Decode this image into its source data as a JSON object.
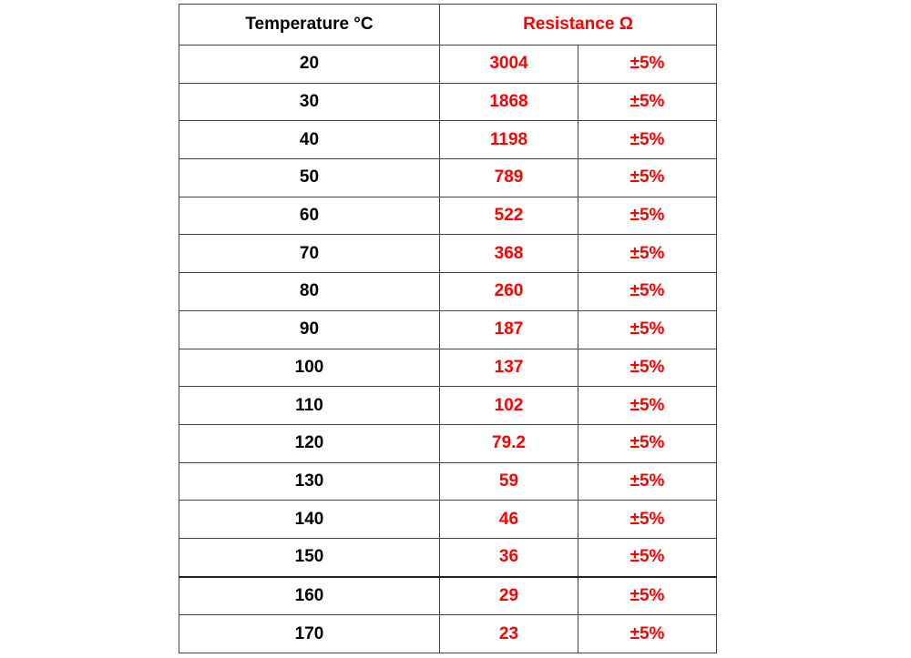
{
  "table": {
    "header": {
      "temperature": "Temperature °C",
      "resistance": "Resistance Ω"
    },
    "rows": [
      [
        20,
        3004,
        "±5%"
      ],
      [
        30,
        1868,
        "±5%"
      ],
      [
        40,
        1198,
        "±5%"
      ],
      [
        50,
        789,
        "±5%"
      ],
      [
        60,
        522,
        "±5%"
      ],
      [
        70,
        368,
        "±5%"
      ],
      [
        80,
        260,
        "±5%"
      ],
      [
        90,
        187,
        "±5%"
      ],
      [
        100,
        137,
        "±5%"
      ],
      [
        110,
        102,
        "±5%"
      ],
      [
        120,
        79.2,
        "±5%"
      ],
      [
        130,
        59,
        "±5%"
      ],
      [
        140,
        46,
        "±5%"
      ],
      [
        150,
        36,
        "±5%"
      ],
      [
        160,
        29,
        "±5%"
      ],
      [
        170,
        23,
        "±5%"
      ]
    ]
  }
}
